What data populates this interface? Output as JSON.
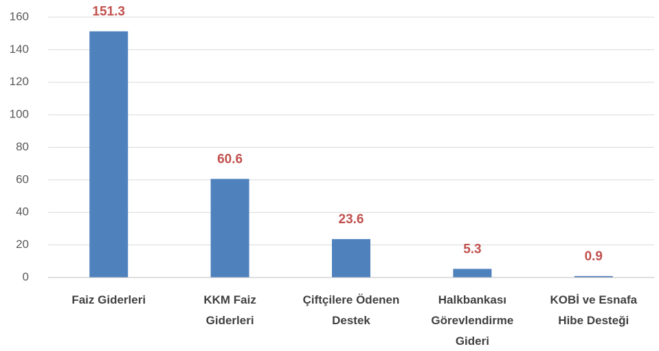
{
  "chart_data": {
    "type": "bar",
    "categories": [
      "Faiz Giderleri",
      "KKM Faiz Giderleri",
      "Çiftçilere Ödenen Destek",
      "Halkbankası Görevlendirme Gideri",
      "KOBİ ve Esnafa Hibe Desteği"
    ],
    "values": [
      151.3,
      60.6,
      23.6,
      5.3,
      0.9
    ],
    "color": "#4f81bd",
    "label_color": "#c0504d",
    "ylim": [
      0,
      160
    ],
    "yticks": [
      0,
      20,
      40,
      60,
      80,
      100,
      120,
      140,
      160
    ],
    "grid": true
  }
}
